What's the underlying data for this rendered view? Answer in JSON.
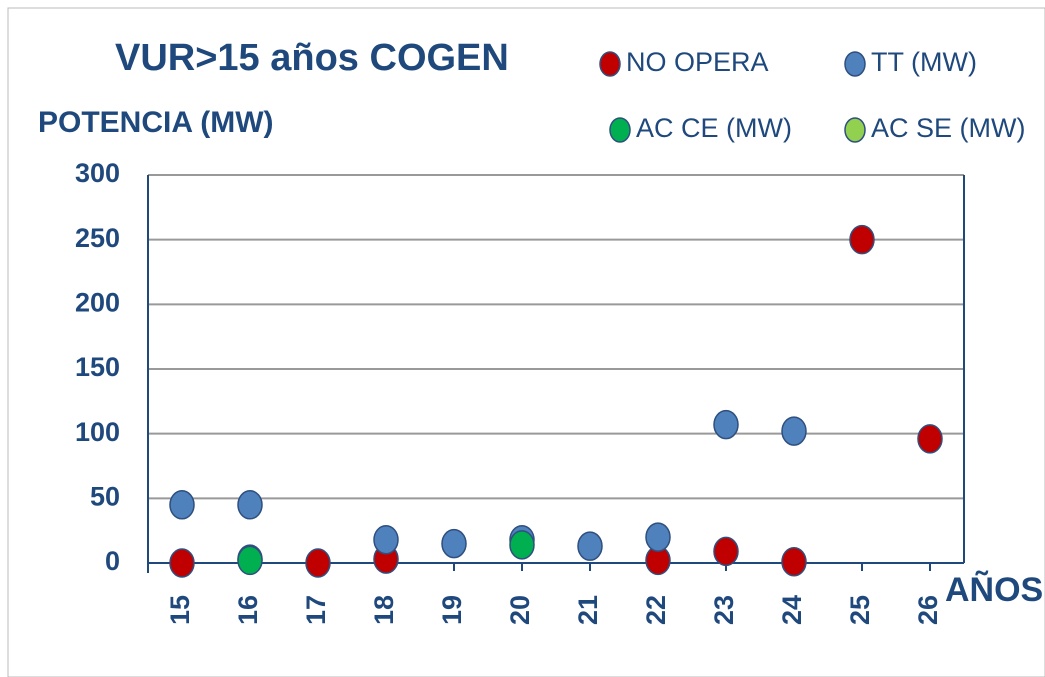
{
  "chart_data": {
    "type": "scatter",
    "title": "VUR>15 años COGEN",
    "y_label": "POTENCIA (MW)",
    "x_label": "AÑOS",
    "xlim": [
      14.5,
      26.5
    ],
    "xticks": [
      15,
      16,
      17,
      18,
      19,
      20,
      21,
      22,
      23,
      24,
      25,
      26
    ],
    "ylim": [
      0,
      300
    ],
    "yticks": [
      0,
      50,
      100,
      150,
      200,
      250,
      300
    ],
    "grid": true,
    "series": [
      {
        "name": "NO OPERA",
        "color": "#c00000",
        "x": [
          15,
          16,
          17,
          18,
          22,
          23,
          24,
          25,
          26
        ],
        "values": [
          0,
          3,
          0,
          3,
          2,
          9,
          1,
          250,
          96
        ]
      },
      {
        "name": "TT (MW)",
        "color": "#4f81bd",
        "x": [
          15,
          16,
          18,
          19,
          20,
          21,
          22,
          23,
          24
        ],
        "values": [
          45,
          45,
          18,
          15,
          18,
          13,
          20,
          107,
          102
        ]
      },
      {
        "name": "AC CE (MW)",
        "color": "#00b050",
        "x": [
          16,
          20
        ],
        "values": [
          2,
          14
        ]
      },
      {
        "name": "AC SE (MW)",
        "color": "#92d050",
        "x": [],
        "values": []
      }
    ]
  }
}
